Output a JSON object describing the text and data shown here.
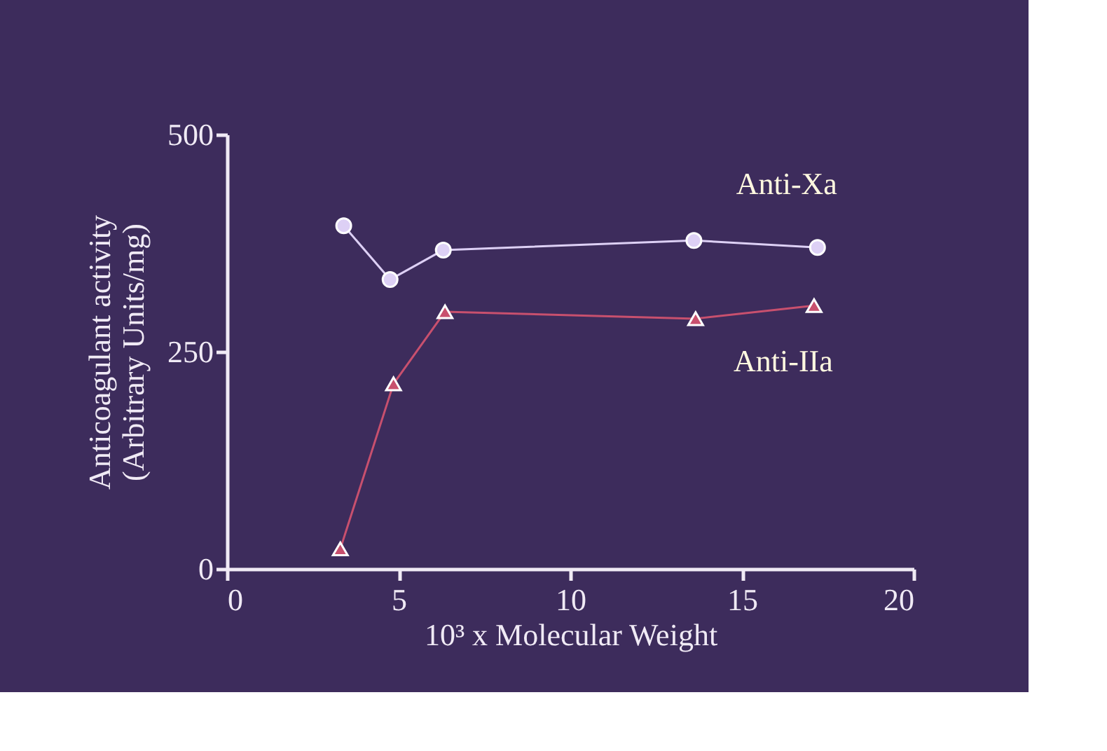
{
  "chart_data": {
    "type": "line",
    "xlabel": "10³ x Molecular Weight",
    "ylabel": [
      "Anticoagulant activity",
      "(Arbitrary Units/mg)"
    ],
    "xlim": [
      0,
      20
    ],
    "xticks": [
      0,
      5,
      10,
      15,
      20
    ],
    "ylim": [
      0,
      500
    ],
    "yticks": [
      0,
      250,
      500
    ],
    "grid": false,
    "legend": false,
    "series": [
      {
        "name": "Anti-Xa",
        "color": "#ddd0f5",
        "marker": "circle",
        "x": [
          3.4,
          4.75,
          6.3,
          13.6,
          17.2
        ],
        "values": [
          395,
          333,
          367,
          378,
          370
        ]
      },
      {
        "name": "Anti-IIa",
        "color": "#c8506e",
        "marker": "triangle",
        "x": [
          3.3,
          4.85,
          6.35,
          13.65,
          17.1
        ],
        "values": [
          23,
          213,
          296,
          288,
          303
        ]
      }
    ]
  }
}
